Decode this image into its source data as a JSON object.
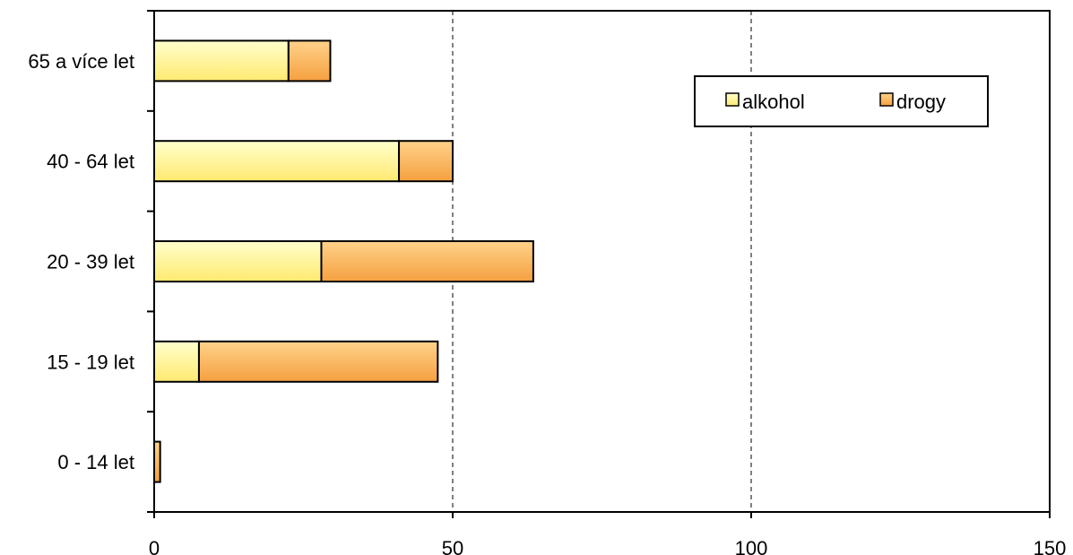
{
  "chart_data": {
    "type": "bar",
    "orientation": "horizontal",
    "stacked": true,
    "title": "",
    "xlabel": "",
    "ylabel": "",
    "categories": [
      "0 - 14 let",
      "15 - 19 let",
      "20 - 39 let",
      "40 - 64 let",
      "65 a více let"
    ],
    "series": [
      {
        "name": "alkohol",
        "values": [
          0,
          7.5,
          28,
          41,
          22.5
        ],
        "color_top": "#ffffcc",
        "color_bottom": "#ffea70"
      },
      {
        "name": "drogy",
        "values": [
          1,
          40,
          35.5,
          9,
          7
        ],
        "color_top": "#ffd28a",
        "color_bottom": "#f5a040"
      }
    ],
    "xlim": [
      0,
      150
    ],
    "xticks": [
      0,
      50,
      100,
      150
    ],
    "grid": "vertical-dashed",
    "legend": "top-right"
  }
}
